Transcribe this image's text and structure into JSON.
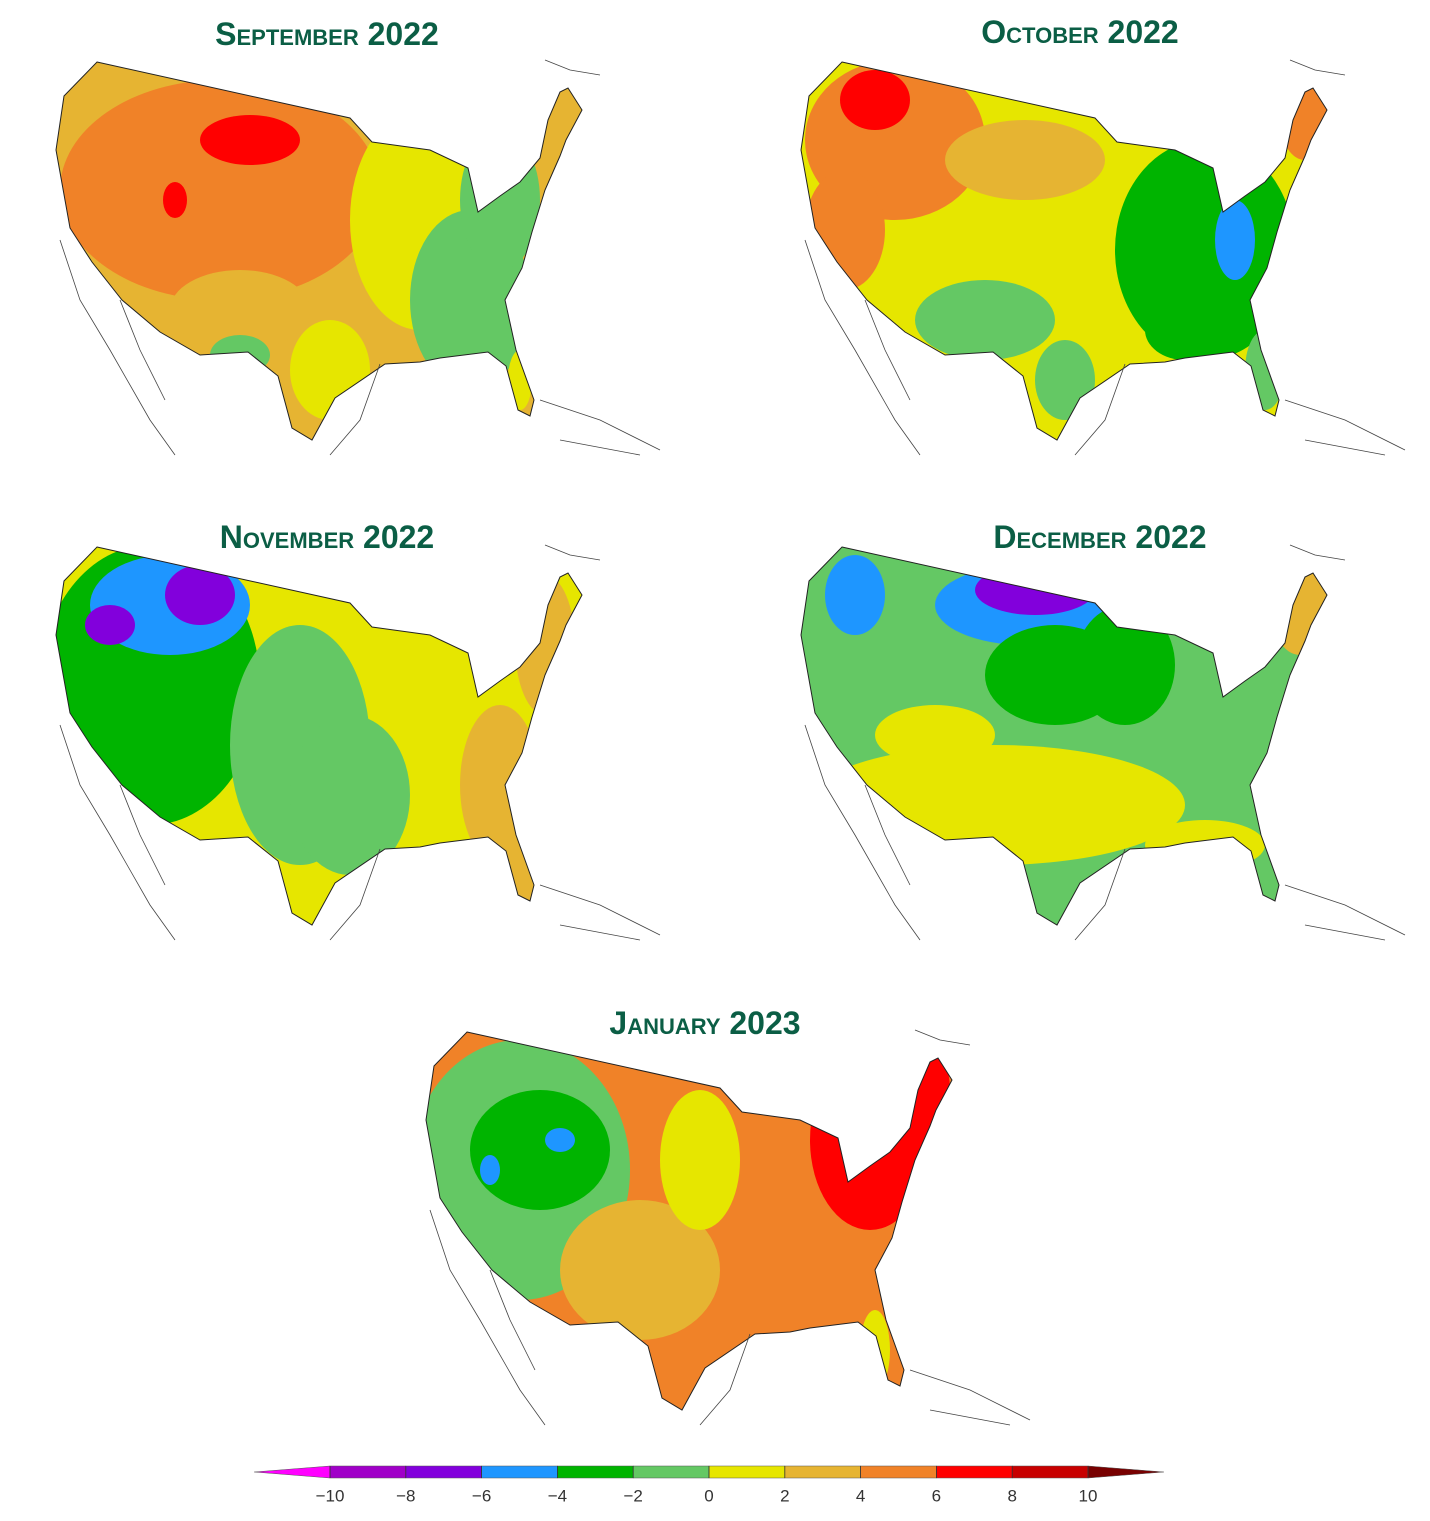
{
  "panels": [
    {
      "title": "September 2022"
    },
    {
      "title": "October 2022"
    },
    {
      "title": "November 2022"
    },
    {
      "title": "December 2022"
    },
    {
      "title": "January 2023"
    }
  ],
  "colorbar": {
    "lim": [
      -10,
      10
    ],
    "ticks": [
      {
        "value": -10,
        "label": "−10"
      },
      {
        "value": -8,
        "label": "−8"
      },
      {
        "value": -6,
        "label": "−6"
      },
      {
        "value": -4,
        "label": "−4"
      },
      {
        "value": -2,
        "label": "−2"
      },
      0,
      2,
      4,
      6,
      8,
      10
    ],
    "colors": [
      "#ff00ff",
      "#a000c8",
      "#8200dc",
      "#1e96ff",
      "#00b400",
      "#64c864",
      "#e6e600",
      "#e6b432",
      "#f08228",
      "#ff0000",
      "#c80000",
      "#780000"
    ]
  }
}
